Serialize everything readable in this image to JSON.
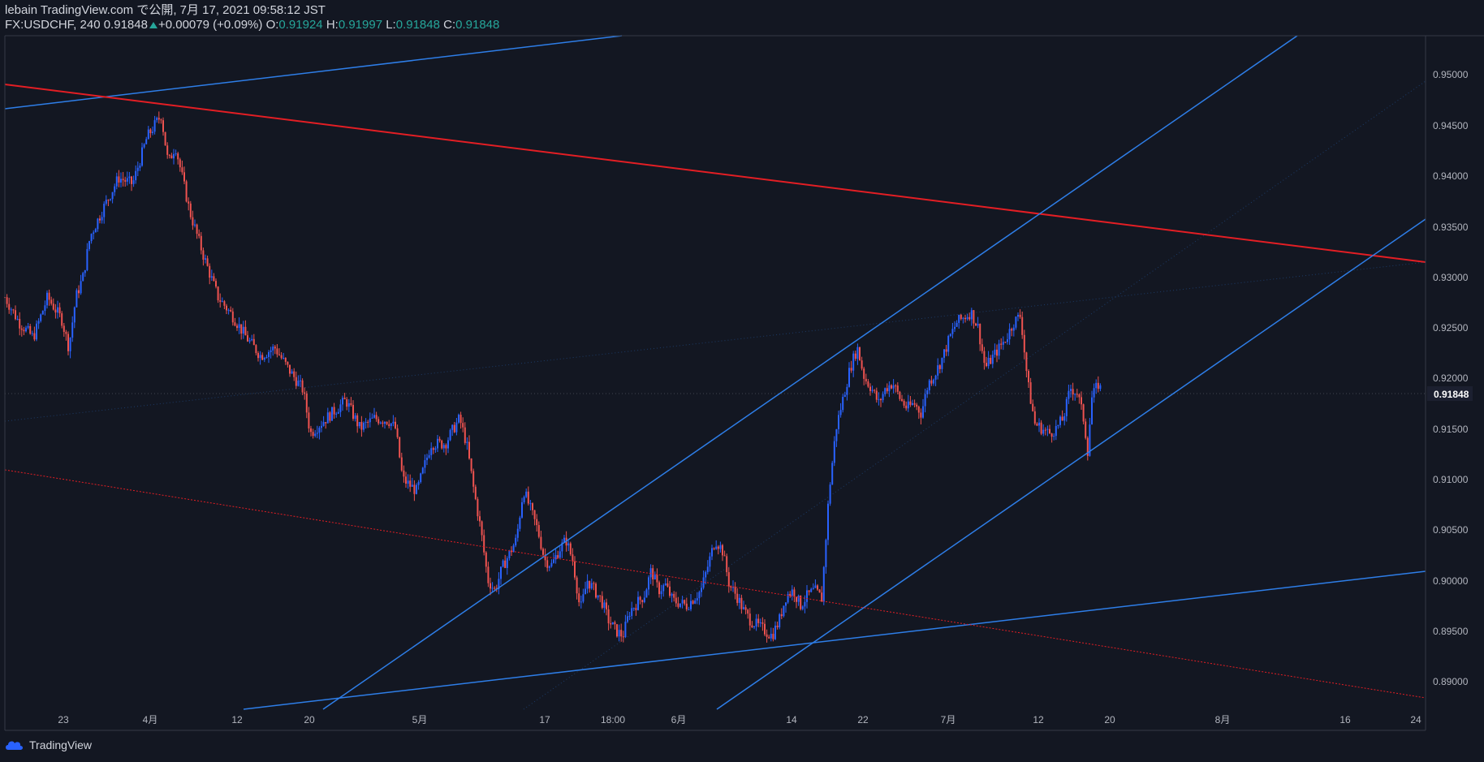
{
  "header": {
    "line1": "lebain TradingView.com で公開, 7月 17, 2021 09:58:12 JST",
    "symbol": "FX:USDCHF, 240",
    "last": "0.91848",
    "change": "+0.00079 (+0.09%)",
    "o_label": "O:",
    "o_value": "0.91924",
    "h_label": "H:",
    "h_value": "0.91997",
    "l_label": "L:",
    "l_value": "0.91848",
    "c_label": "C:",
    "c_value": "0.91848"
  },
  "footer": {
    "brand": "TradingView",
    "icon": "tradingview-cloud-icon"
  },
  "colors": {
    "background": "#131722",
    "up": "#2962ff",
    "down": "#ef5350",
    "trend_red": "#e31e24",
    "trend_blue": "#2e7ee8",
    "text": "#d1d4dc",
    "green": "#26a69a"
  },
  "chart_data": {
    "type": "candlestick",
    "title": "FX:USDCHF, 240",
    "price_axis_labels": [
      "0.95000",
      "0.94500",
      "0.94000",
      "0.93500",
      "0.93000",
      "0.92500",
      "0.92000",
      "0.91500",
      "0.91000",
      "0.90500",
      "0.90000",
      "0.89500",
      "0.89000"
    ],
    "time_axis_labels": [
      "23",
      "4月",
      "12",
      "20",
      "5月",
      "17",
      "18:00",
      "6月",
      "14",
      "22",
      "7月",
      "12",
      "20",
      "8月",
      "16",
      "24"
    ],
    "last_price_label": "0.91848",
    "ylim": [
      0.888,
      0.953
    ],
    "close_path_points": [
      [
        0,
        0.928
      ],
      [
        0.01,
        0.9255
      ],
      [
        0.02,
        0.924
      ],
      [
        0.03,
        0.928
      ],
      [
        0.04,
        0.9258
      ],
      [
        0.045,
        0.923
      ],
      [
        0.05,
        0.928
      ],
      [
        0.055,
        0.93
      ],
      [
        0.06,
        0.934
      ],
      [
        0.07,
        0.937
      ],
      [
        0.08,
        0.9398
      ],
      [
        0.09,
        0.9392
      ],
      [
        0.1,
        0.9438
      ],
      [
        0.11,
        0.946
      ],
      [
        0.115,
        0.9412
      ],
      [
        0.12,
        0.943
      ],
      [
        0.13,
        0.9365
      ],
      [
        0.14,
        0.932
      ],
      [
        0.15,
        0.928
      ],
      [
        0.16,
        0.9262
      ],
      [
        0.17,
        0.924
      ],
      [
        0.18,
        0.9222
      ],
      [
        0.19,
        0.923
      ],
      [
        0.2,
        0.9208
      ],
      [
        0.21,
        0.9188
      ],
      [
        0.215,
        0.9145
      ],
      [
        0.22,
        0.9152
      ],
      [
        0.23,
        0.9165
      ],
      [
        0.24,
        0.9178
      ],
      [
        0.25,
        0.915
      ],
      [
        0.26,
        0.916
      ],
      [
        0.27,
        0.9158
      ],
      [
        0.275,
        0.915
      ],
      [
        0.28,
        0.91
      ],
      [
        0.29,
        0.9088
      ],
      [
        0.3,
        0.9135
      ],
      [
        0.31,
        0.9135
      ],
      [
        0.315,
        0.9148
      ],
      [
        0.32,
        0.916
      ],
      [
        0.325,
        0.9135
      ],
      [
        0.33,
        0.909
      ],
      [
        0.335,
        0.905
      ],
      [
        0.34,
        0.9
      ],
      [
        0.345,
        0.899
      ],
      [
        0.35,
        0.9012
      ],
      [
        0.36,
        0.904
      ],
      [
        0.365,
        0.909
      ],
      [
        0.37,
        0.907
      ],
      [
        0.375,
        0.905
      ],
      [
        0.38,
        0.902
      ],
      [
        0.385,
        0.9015
      ],
      [
        0.39,
        0.903
      ],
      [
        0.395,
        0.904
      ],
      [
        0.4,
        0.9018
      ],
      [
        0.405,
        0.897
      ],
      [
        0.41,
        0.9
      ],
      [
        0.42,
        0.898
      ],
      [
        0.425,
        0.896
      ],
      [
        0.43,
        0.895
      ],
      [
        0.435,
        0.8945
      ],
      [
        0.44,
        0.897
      ],
      [
        0.45,
        0.8985
      ],
      [
        0.455,
        0.901
      ],
      [
        0.46,
        0.899
      ],
      [
        0.465,
        0.8995
      ],
      [
        0.47,
        0.898
      ],
      [
        0.48,
        0.8975
      ],
      [
        0.49,
        0.899
      ],
      [
        0.5,
        0.904
      ],
      [
        0.505,
        0.903
      ],
      [
        0.51,
        0.8995
      ],
      [
        0.515,
        0.8985
      ],
      [
        0.52,
        0.897
      ],
      [
        0.525,
        0.896
      ],
      [
        0.53,
        0.8955
      ],
      [
        0.535,
        0.895
      ],
      [
        0.54,
        0.8945
      ],
      [
        0.545,
        0.896
      ],
      [
        0.55,
        0.8985
      ],
      [
        0.555,
        0.899
      ],
      [
        0.56,
        0.8975
      ],
      [
        0.565,
        0.8985
      ],
      [
        0.57,
        0.899
      ],
      [
        0.575,
        0.8982
      ],
      [
        0.58,
        0.9085
      ],
      [
        0.585,
        0.915
      ],
      [
        0.59,
        0.918
      ],
      [
        0.595,
        0.921
      ],
      [
        0.6,
        0.923
      ],
      [
        0.605,
        0.92
      ],
      [
        0.61,
        0.919
      ],
      [
        0.615,
        0.9175
      ],
      [
        0.62,
        0.919
      ],
      [
        0.625,
        0.9195
      ],
      [
        0.63,
        0.918
      ],
      [
        0.635,
        0.917
      ],
      [
        0.64,
        0.9175
      ],
      [
        0.645,
        0.9165
      ],
      [
        0.65,
        0.9195
      ],
      [
        0.655,
        0.9205
      ],
      [
        0.66,
        0.922
      ],
      [
        0.665,
        0.924
      ],
      [
        0.67,
        0.9255
      ],
      [
        0.675,
        0.926
      ],
      [
        0.68,
        0.9265
      ],
      [
        0.685,
        0.925
      ],
      [
        0.69,
        0.921
      ],
      [
        0.695,
        0.922
      ],
      [
        0.7,
        0.923
      ],
      [
        0.705,
        0.924
      ],
      [
        0.71,
        0.9255
      ],
      [
        0.715,
        0.9262
      ],
      [
        0.72,
        0.9195
      ],
      [
        0.725,
        0.9155
      ],
      [
        0.73,
        0.915
      ],
      [
        0.735,
        0.9145
      ],
      [
        0.74,
        0.915
      ],
      [
        0.745,
        0.916
      ],
      [
        0.75,
        0.919
      ],
      [
        0.755,
        0.9185
      ],
      [
        0.76,
        0.9155
      ],
      [
        0.762,
        0.9125
      ],
      [
        0.765,
        0.918
      ],
      [
        0.77,
        0.9195
      ],
      [
        0.772,
        0.9185
      ]
    ]
  }
}
